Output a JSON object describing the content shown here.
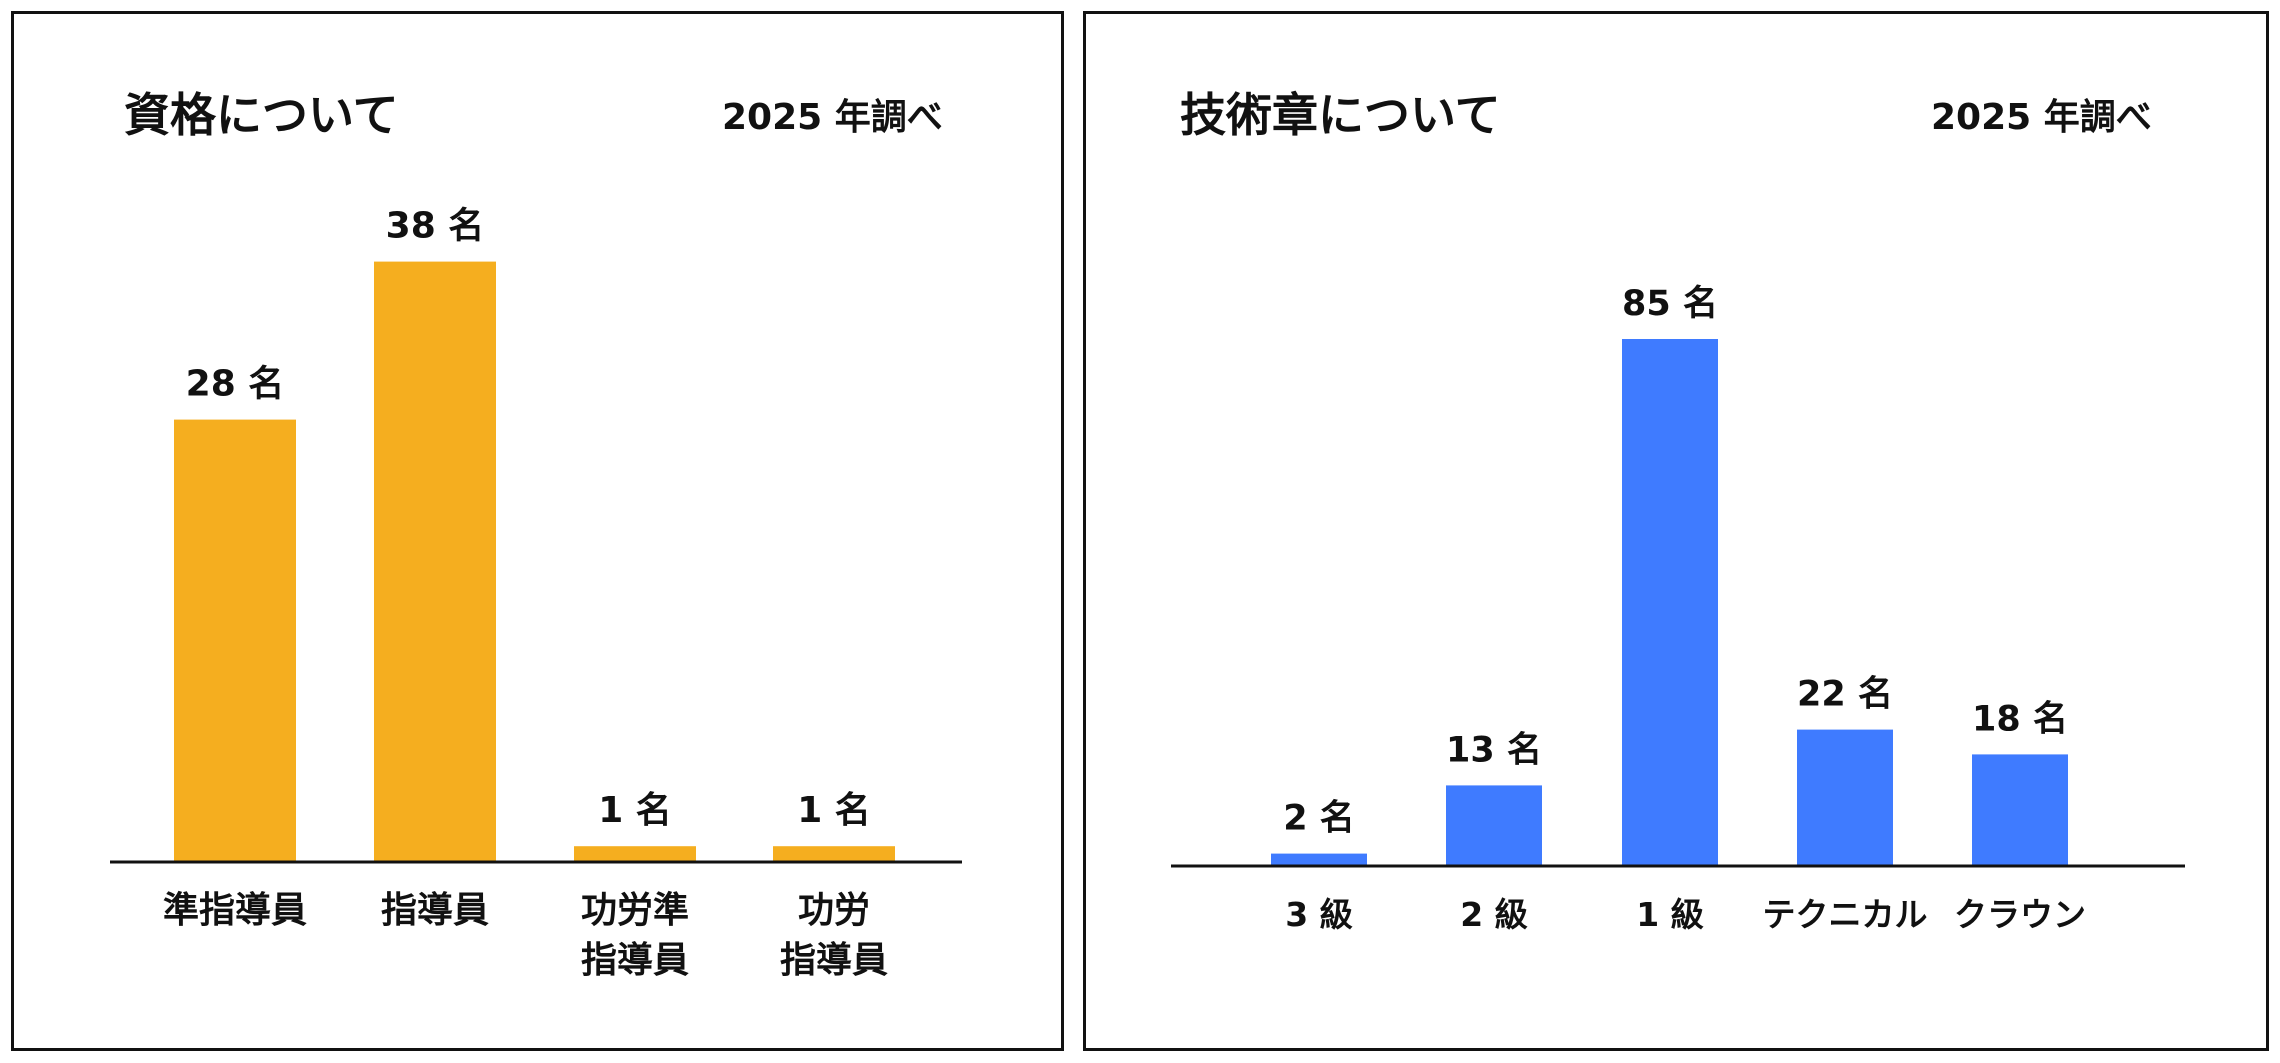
{
  "chart_data": [
    {
      "type": "bar",
      "title": "資格について",
      "note": "2025 年調べ",
      "categories": [
        [
          "準指導員"
        ],
        [
          "指導員"
        ],
        [
          "功労準",
          "指導員"
        ],
        [
          "功労",
          "指導員"
        ]
      ],
      "values": [
        28,
        38,
        1,
        1
      ],
      "value_labels": [
        "28 名",
        "38 名",
        "1 名",
        "1 名"
      ],
      "unit": "名",
      "color": "#F5AE1F",
      "xlabel": "",
      "ylabel": "",
      "grid": false,
      "legend": "none"
    },
    {
      "type": "bar",
      "title": "技術章について",
      "note": "2025 年調べ",
      "categories": [
        [
          "3 級"
        ],
        [
          "2 級"
        ],
        [
          "1 級"
        ],
        [
          "テクニカル"
        ],
        [
          "クラウン"
        ]
      ],
      "values": [
        2,
        13,
        85,
        22,
        18
      ],
      "value_labels": [
        "2 名",
        "13 名",
        "85 名",
        "22 名",
        "18 名"
      ],
      "unit": "名",
      "color": "#3F7BFF",
      "xlabel": "",
      "ylabel": "",
      "grid": false,
      "legend": "none"
    }
  ]
}
